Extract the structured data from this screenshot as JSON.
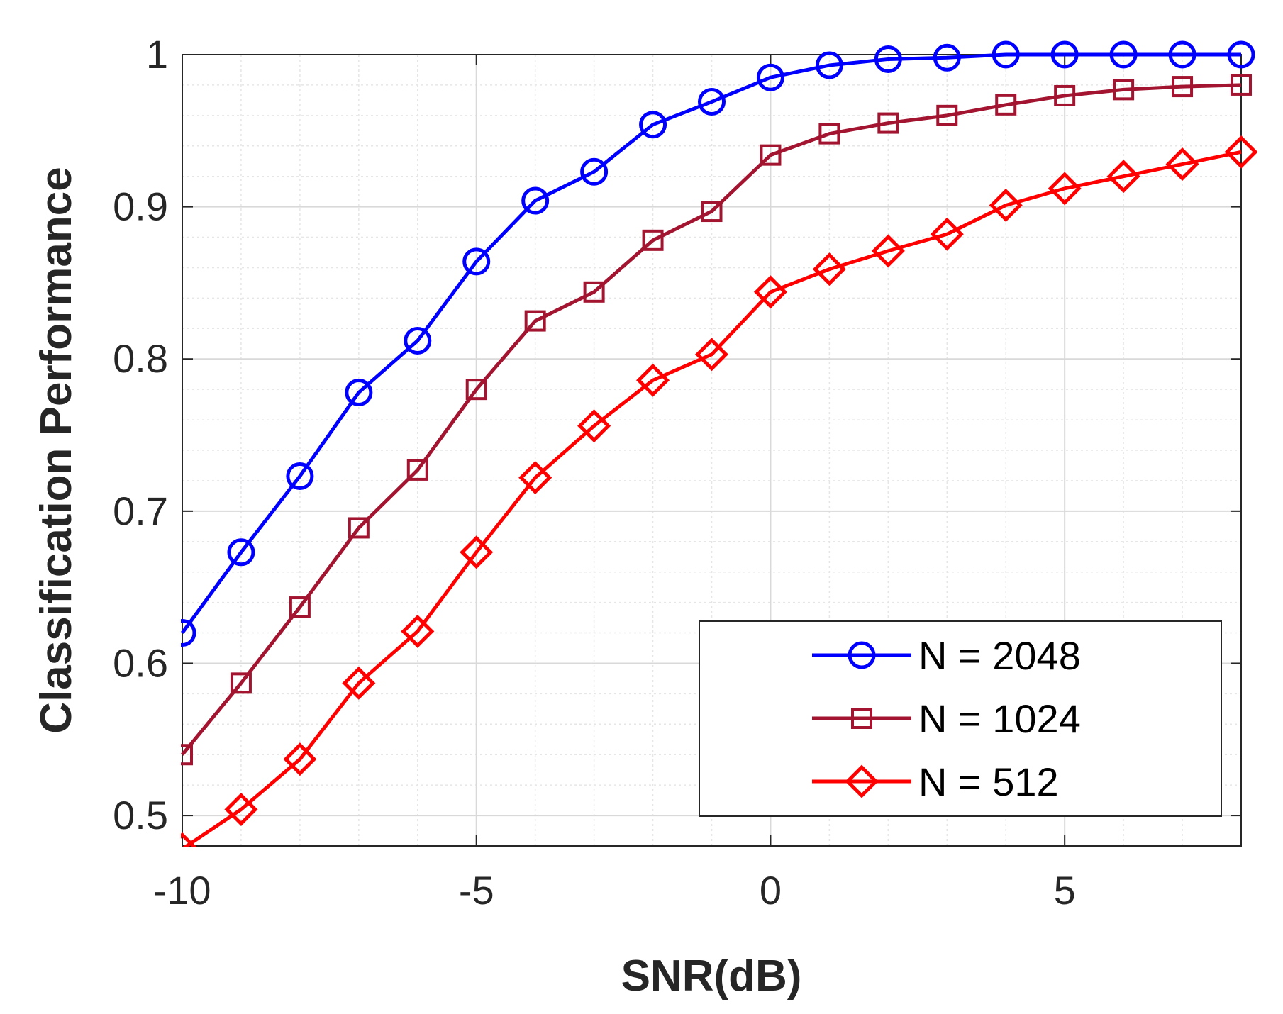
{
  "chart_data": {
    "type": "line",
    "title": "",
    "xlabel": "SNR(dB)",
    "ylabel": "Classification Performance",
    "xlim": [
      -10,
      8
    ],
    "ylim": [
      0.48,
      1.0
    ],
    "xticks": [
      -10,
      -5,
      0,
      5
    ],
    "xtick_labels": [
      "-10",
      "-5",
      "0",
      "5"
    ],
    "yticks": [
      0.5,
      0.6,
      0.7,
      0.8,
      0.9,
      1.0
    ],
    "ytick_labels": [
      "0.5",
      "0.6",
      "0.7",
      "0.8",
      "0.9",
      "1"
    ],
    "grid": "on (major and minor)",
    "legend_position": "bottom-right",
    "x": [
      -10,
      -9,
      -8,
      -7,
      -6,
      -5,
      -4,
      -3,
      -2,
      -1,
      0,
      1,
      2,
      3,
      4,
      5,
      6,
      7,
      8
    ],
    "series": [
      {
        "name": "N = 2048",
        "color": "#0000ff",
        "marker": "circle",
        "values": [
          0.62,
          0.673,
          0.723,
          0.778,
          0.812,
          0.864,
          0.904,
          0.923,
          0.954,
          0.969,
          0.985,
          0.993,
          0.997,
          0.998,
          1.0,
          1.0,
          1.0,
          1.0,
          1.0
        ]
      },
      {
        "name": "N = 1024",
        "color": "#a2142f",
        "marker": "square",
        "values": [
          0.54,
          0.587,
          0.637,
          0.689,
          0.727,
          0.78,
          0.825,
          0.844,
          0.878,
          0.897,
          0.934,
          0.948,
          0.955,
          0.96,
          0.967,
          0.973,
          0.977,
          0.979,
          0.98
        ]
      },
      {
        "name": "N = 512",
        "color": "#ff0000",
        "marker": "diamond",
        "values": [
          0.478,
          0.504,
          0.537,
          0.587,
          0.621,
          0.673,
          0.722,
          0.756,
          0.786,
          0.803,
          0.844,
          0.859,
          0.871,
          0.882,
          0.901,
          0.912,
          0.92,
          0.928,
          0.936
        ]
      }
    ]
  }
}
